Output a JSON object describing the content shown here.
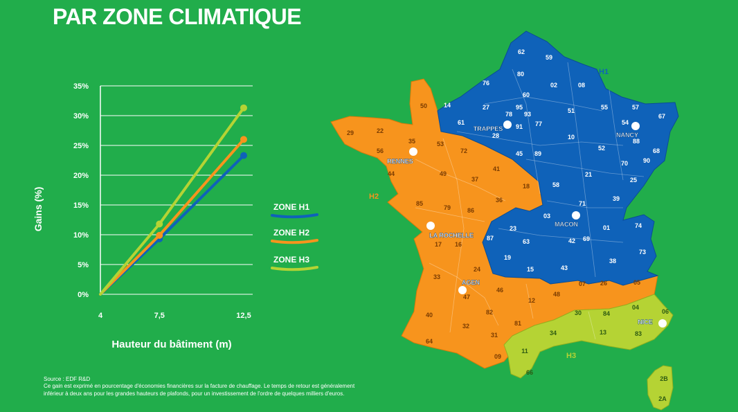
{
  "title": "PAR ZONE CLIMATIQUE",
  "colors": {
    "background": "#21ad4b",
    "h1": "#0f62b9",
    "h2": "#f7941d",
    "h3": "#b5d334",
    "white": "#ffffff"
  },
  "chart_data": {
    "type": "line",
    "x": [
      4,
      7.5,
      12.5
    ],
    "x_tick_labels": [
      "4",
      "7,5",
      "12,5"
    ],
    "y_tick_labels": [
      "0%",
      "5%",
      "10%",
      "15%",
      "20%",
      "25%",
      "30%",
      "35%"
    ],
    "ylim": [
      0,
      35
    ],
    "xlabel": "Hauteur du bâtiment (m)",
    "ylabel": "Gains (%)",
    "grid": true,
    "legend_position": "right",
    "series": [
      {
        "name": "ZONE H1",
        "color": "#0f62b9",
        "values": [
          0,
          9.3,
          23.3
        ]
      },
      {
        "name": "ZONE H2",
        "color": "#f7941d",
        "values": [
          0,
          9.9,
          26
        ]
      },
      {
        "name": "ZONE H3",
        "color": "#b5d334",
        "values": [
          0,
          11.8,
          31.3
        ]
      }
    ]
  },
  "map": {
    "zone_labels": [
      "H1",
      "H2",
      "H3"
    ],
    "cities": [
      "TRAPPES",
      "NANCY",
      "RENNES",
      "MACON",
      "LA ROCHELLE",
      "AGEN",
      "NICE"
    ],
    "departments": {
      "h1": [
        "62",
        "59",
        "80",
        "76",
        "02",
        "08",
        "60",
        "95",
        "27",
        "78",
        "93",
        "91",
        "14",
        "61",
        "28",
        "55",
        "57",
        "67",
        "51",
        "77",
        "54",
        "88",
        "10",
        "52",
        "68",
        "89",
        "70",
        "90",
        "25",
        "45",
        "21",
        "39",
        "58",
        "71",
        "03",
        "01",
        "74",
        "23",
        "87",
        "63",
        "42",
        "69",
        "38",
        "19",
        "15",
        "43",
        "73"
      ],
      "h2": [
        "50",
        "29",
        "22",
        "35",
        "53",
        "72",
        "56",
        "44",
        "49",
        "37",
        "41",
        "85",
        "79",
        "86",
        "36",
        "18",
        "17",
        "16",
        "24",
        "33",
        "47",
        "46",
        "12",
        "48",
        "07",
        "26",
        "05",
        "40",
        "32",
        "82",
        "81",
        "64",
        "31",
        "09"
      ],
      "h3": [
        "11",
        "66",
        "34",
        "30",
        "84",
        "04",
        "06",
        "13",
        "83",
        "2B",
        "2A"
      ]
    }
  },
  "footnote": {
    "source": "Source : EDF R&D",
    "line1": "Ce gain est exprimé en pourcentage d'économies financières sur la facture de chauffage. Le temps de retour est généralement",
    "line2": "inférieur à deux ans pour les grandes hauteurs de plafonds,  pour un investissement de l'ordre de quelques milliers d'euros."
  }
}
